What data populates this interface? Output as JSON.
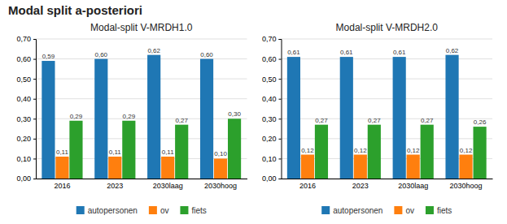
{
  "title": "Modal split a-posteriori",
  "chart_data": [
    {
      "type": "bar",
      "title": "Modal-split V-MRDH1.0",
      "categories": [
        "2016",
        "2023",
        "2030laag",
        "2030hoog"
      ],
      "series": [
        {
          "name": "autopersonen",
          "values": [
            0.59,
            0.6,
            0.62,
            0.6
          ],
          "value_labels": [
            "0,59",
            "0,60",
            "0,62",
            "0,60"
          ]
        },
        {
          "name": "ov",
          "values": [
            0.11,
            0.11,
            0.11,
            0.1
          ],
          "value_labels": [
            "0,11",
            "0,11",
            "0,11",
            "0,10"
          ]
        },
        {
          "name": "fiets",
          "values": [
            0.29,
            0.29,
            0.27,
            0.3
          ],
          "value_labels": [
            "0,29",
            "0,29",
            "0,27",
            "0,30"
          ]
        }
      ],
      "ylim": [
        0.0,
        0.7
      ],
      "yticks": [
        {
          "value": 0.0,
          "label": "0,00"
        },
        {
          "value": 0.1,
          "label": "0,10"
        },
        {
          "value": 0.2,
          "label": "0,20"
        },
        {
          "value": 0.3,
          "label": "0,30"
        },
        {
          "value": 0.4,
          "label": "0,40"
        },
        {
          "value": 0.5,
          "label": "0,50"
        },
        {
          "value": 0.6,
          "label": "0,60"
        },
        {
          "value": 0.7,
          "label": "0,70"
        }
      ],
      "grid": true,
      "data_labels": true,
      "legend": "bottom"
    },
    {
      "type": "bar",
      "title": "Modal-split V-MRDH2.0",
      "categories": [
        "2016",
        "2023",
        "2030laag",
        "2030hoog"
      ],
      "series": [
        {
          "name": "autopersonen",
          "values": [
            0.61,
            0.61,
            0.61,
            0.62
          ],
          "value_labels": [
            "0,61",
            "0,61",
            "0,61",
            "0,62"
          ]
        },
        {
          "name": "ov",
          "values": [
            0.12,
            0.12,
            0.12,
            0.12
          ],
          "value_labels": [
            "0,12",
            "0,12",
            "0,12",
            "0,12"
          ]
        },
        {
          "name": "fiets",
          "values": [
            0.27,
            0.27,
            0.27,
            0.26
          ],
          "value_labels": [
            "0,27",
            "0,27",
            "0,27",
            "0,26"
          ]
        }
      ],
      "ylim": [
        0.0,
        0.7
      ],
      "yticks": [
        {
          "value": 0.0,
          "label": "0,00"
        },
        {
          "value": 0.1,
          "label": "0,10"
        },
        {
          "value": 0.2,
          "label": "0,20"
        },
        {
          "value": 0.3,
          "label": "0,30"
        },
        {
          "value": 0.4,
          "label": "0,40"
        },
        {
          "value": 0.5,
          "label": "0,50"
        },
        {
          "value": 0.6,
          "label": "0,60"
        },
        {
          "value": 0.7,
          "label": "0,70"
        }
      ],
      "grid": true,
      "data_labels": true,
      "legend": "bottom"
    }
  ]
}
